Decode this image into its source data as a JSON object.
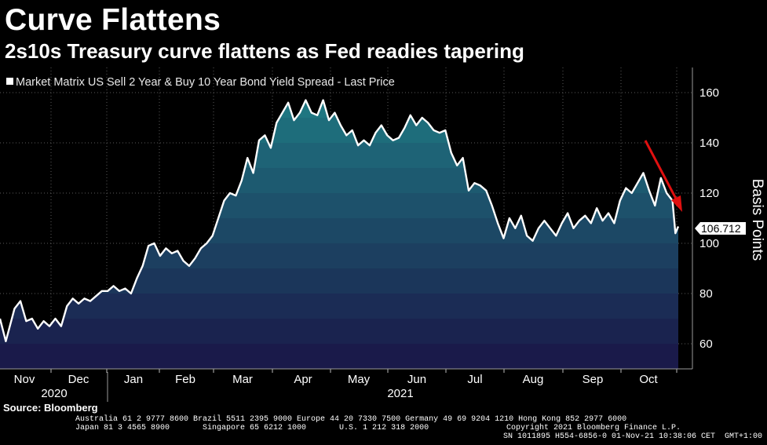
{
  "title": "Curve Flattens",
  "subtitle": "2s10s Treasury curve flattens as Fed readies tapering",
  "source": "Source: Bloomberg",
  "footer": {
    "line1": "Australia 61 2 9777 8600 Brazil 5511 2395 9000 Europe 44 20 7330 7500 Germany 49 69 9204 1210 Hong Kong 852 2977 6000",
    "line2": "Japan 81 3 4565 8900       Singapore 65 6212 1000       U.S. 1 212 318 2000",
    "copyright": "Copyright 2021 Bloomberg Finance L.P.",
    "line3": "SN 1011895 H554-6856-0 01-Nov-21 10:38:06 CET  GMT+1:00"
  },
  "colors": {
    "background": "#000000",
    "line": "#ffffff",
    "arrow": "#e01010",
    "grid": "#5a5a5a",
    "fill_top": "#1f7f86",
    "fill_bottom": "#1a1a4a"
  },
  "chart_data": {
    "type": "area",
    "legend": "Market Matrix US Sell 2 Year & Buy 10 Year Bond Yield Spread - Last Price",
    "legend_position": "top-left",
    "ylabel": "Basis Points",
    "ylim": [
      50,
      170
    ],
    "yticks": [
      60,
      80,
      100,
      120,
      140,
      160
    ],
    "grid": true,
    "months": [
      "Nov",
      "Dec",
      "Jan",
      "Feb",
      "Mar",
      "Apr",
      "May",
      "Jun",
      "Jul",
      "Aug",
      "Sep",
      "Oct"
    ],
    "years": [
      "2020",
      "2021"
    ],
    "last_value_label": "106.712",
    "annotation": "red-down-arrow",
    "series": [
      {
        "values": [
          [
            0,
            70
          ],
          [
            2,
            61
          ],
          [
            5,
            74
          ],
          [
            7,
            77
          ],
          [
            9,
            69
          ],
          [
            11,
            70
          ],
          [
            13,
            66
          ],
          [
            15,
            69
          ],
          [
            17,
            67
          ],
          [
            19,
            70
          ],
          [
            21,
            67
          ],
          [
            23,
            75
          ],
          [
            25,
            78
          ],
          [
            27,
            76
          ],
          [
            29,
            78
          ],
          [
            31,
            77
          ],
          [
            33,
            79
          ],
          [
            35,
            81
          ],
          [
            37,
            81
          ],
          [
            39,
            83
          ],
          [
            41,
            81
          ],
          [
            43,
            82
          ],
          [
            45,
            80
          ],
          [
            47,
            86
          ],
          [
            49,
            91
          ],
          [
            51,
            99
          ],
          [
            53,
            100
          ],
          [
            55,
            95
          ],
          [
            57,
            98
          ],
          [
            59,
            96
          ],
          [
            61,
            97
          ],
          [
            63,
            93
          ],
          [
            65,
            91
          ],
          [
            67,
            94
          ],
          [
            69,
            98
          ],
          [
            71,
            100
          ],
          [
            73,
            103
          ],
          [
            75,
            110
          ],
          [
            77,
            117
          ],
          [
            79,
            120
          ],
          [
            81,
            119
          ],
          [
            83,
            125
          ],
          [
            85,
            134
          ],
          [
            87,
            128
          ],
          [
            89,
            141
          ],
          [
            91,
            143
          ],
          [
            93,
            138
          ],
          [
            95,
            148
          ],
          [
            97,
            152
          ],
          [
            99,
            156
          ],
          [
            101,
            149
          ],
          [
            103,
            152
          ],
          [
            105,
            157
          ],
          [
            107,
            152
          ],
          [
            109,
            151
          ],
          [
            111,
            157
          ],
          [
            113,
            149
          ],
          [
            115,
            152
          ],
          [
            117,
            147
          ],
          [
            119,
            143
          ],
          [
            121,
            145
          ],
          [
            123,
            139
          ],
          [
            125,
            141
          ],
          [
            127,
            139
          ],
          [
            129,
            144
          ],
          [
            131,
            147
          ],
          [
            133,
            143
          ],
          [
            135,
            141
          ],
          [
            137,
            142
          ],
          [
            139,
            146
          ],
          [
            141,
            151
          ],
          [
            143,
            147
          ],
          [
            145,
            150
          ],
          [
            147,
            148
          ],
          [
            149,
            145
          ],
          [
            151,
            144
          ],
          [
            153,
            145
          ],
          [
            155,
            136
          ],
          [
            157,
            131
          ],
          [
            159,
            134
          ],
          [
            161,
            121
          ],
          [
            163,
            124
          ],
          [
            165,
            123
          ],
          [
            167,
            121
          ],
          [
            169,
            115
          ],
          [
            171,
            108
          ],
          [
            173,
            102
          ],
          [
            175,
            110
          ],
          [
            177,
            106
          ],
          [
            179,
            111
          ],
          [
            181,
            103
          ],
          [
            183,
            101
          ],
          [
            185,
            106
          ],
          [
            187,
            109
          ],
          [
            189,
            106
          ],
          [
            191,
            103
          ],
          [
            193,
            108
          ],
          [
            195,
            112
          ],
          [
            197,
            106
          ],
          [
            199,
            109
          ],
          [
            201,
            111
          ],
          [
            203,
            108
          ],
          [
            205,
            114
          ],
          [
            207,
            109
          ],
          [
            209,
            112
          ],
          [
            211,
            108
          ],
          [
            213,
            117
          ],
          [
            215,
            122
          ],
          [
            217,
            120
          ],
          [
            219,
            124
          ],
          [
            221,
            128
          ],
          [
            223,
            121
          ],
          [
            225,
            115
          ],
          [
            227,
            126
          ],
          [
            229,
            120
          ],
          [
            231,
            117
          ],
          [
            232,
            104
          ],
          [
            233,
            106.712
          ]
        ]
      }
    ]
  }
}
